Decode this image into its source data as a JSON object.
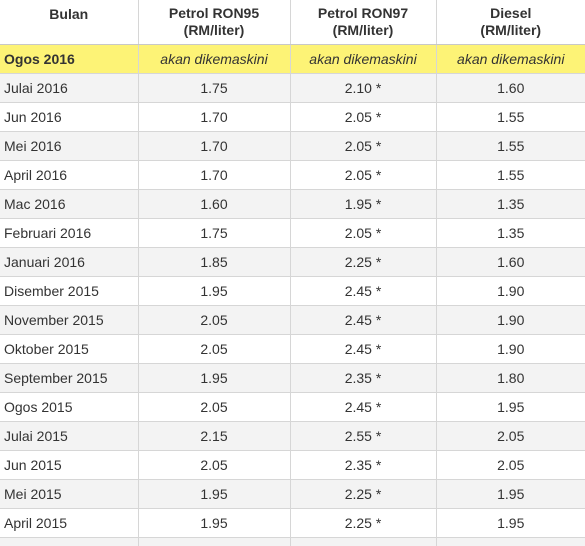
{
  "colors": {
    "highlight_row": "#fdf376",
    "alt_row": "#f3f3f3",
    "border": "#d6d6d6",
    "text": "#333333"
  },
  "header": {
    "month": "Bulan",
    "ron95": {
      "name": "Petrol RON95",
      "unit": "(RM/liter)"
    },
    "ron97": {
      "name": "Petrol RON97",
      "unit": "(RM/liter)"
    },
    "diesel": {
      "name": "Diesel",
      "unit": "(RM/liter)"
    }
  },
  "rows": [
    {
      "month": "Ogos 2016",
      "ron95": "akan dikemaskini",
      "ron97": "akan dikemaskini",
      "diesel": "akan dikemaskini"
    },
    {
      "month": "Julai 2016",
      "ron95": "1.75",
      "ron97": "2.10 *",
      "diesel": "1.60"
    },
    {
      "month": "Jun 2016",
      "ron95": "1.70",
      "ron97": "2.05 *",
      "diesel": "1.55"
    },
    {
      "month": "Mei 2016",
      "ron95": "1.70",
      "ron97": "2.05 *",
      "diesel": "1.55"
    },
    {
      "month": "April 2016",
      "ron95": "1.70",
      "ron97": "2.05 *",
      "diesel": "1.55"
    },
    {
      "month": "Mac 2016",
      "ron95": "1.60",
      "ron97": "1.95 *",
      "diesel": "1.35"
    },
    {
      "month": "Februari 2016",
      "ron95": "1.75",
      "ron97": "2.05 *",
      "diesel": "1.35"
    },
    {
      "month": "Januari 2016",
      "ron95": "1.85",
      "ron97": "2.25 *",
      "diesel": "1.60"
    },
    {
      "month": "Disember 2015",
      "ron95": "1.95",
      "ron97": "2.45 *",
      "diesel": "1.90"
    },
    {
      "month": "November 2015",
      "ron95": "2.05",
      "ron97": "2.45 *",
      "diesel": "1.90"
    },
    {
      "month": "Oktober 2015",
      "ron95": "2.05",
      "ron97": "2.45 *",
      "diesel": "1.90"
    },
    {
      "month": "September 2015",
      "ron95": "1.95",
      "ron97": "2.35 *",
      "diesel": "1.80"
    },
    {
      "month": "Ogos 2015",
      "ron95": "2.05",
      "ron97": "2.45 *",
      "diesel": "1.95"
    },
    {
      "month": "Julai 2015",
      "ron95": "2.15",
      "ron97": "2.55 *",
      "diesel": "2.05"
    },
    {
      "month": "Jun 2015",
      "ron95": "2.05",
      "ron97": "2.35 *",
      "diesel": "2.05"
    },
    {
      "month": "Mei 2015",
      "ron95": "1.95",
      "ron97": "2.25 *",
      "diesel": "1.95"
    },
    {
      "month": "April 2015",
      "ron95": "1.95",
      "ron97": "2.25 *",
      "diesel": "1.95"
    }
  ]
}
